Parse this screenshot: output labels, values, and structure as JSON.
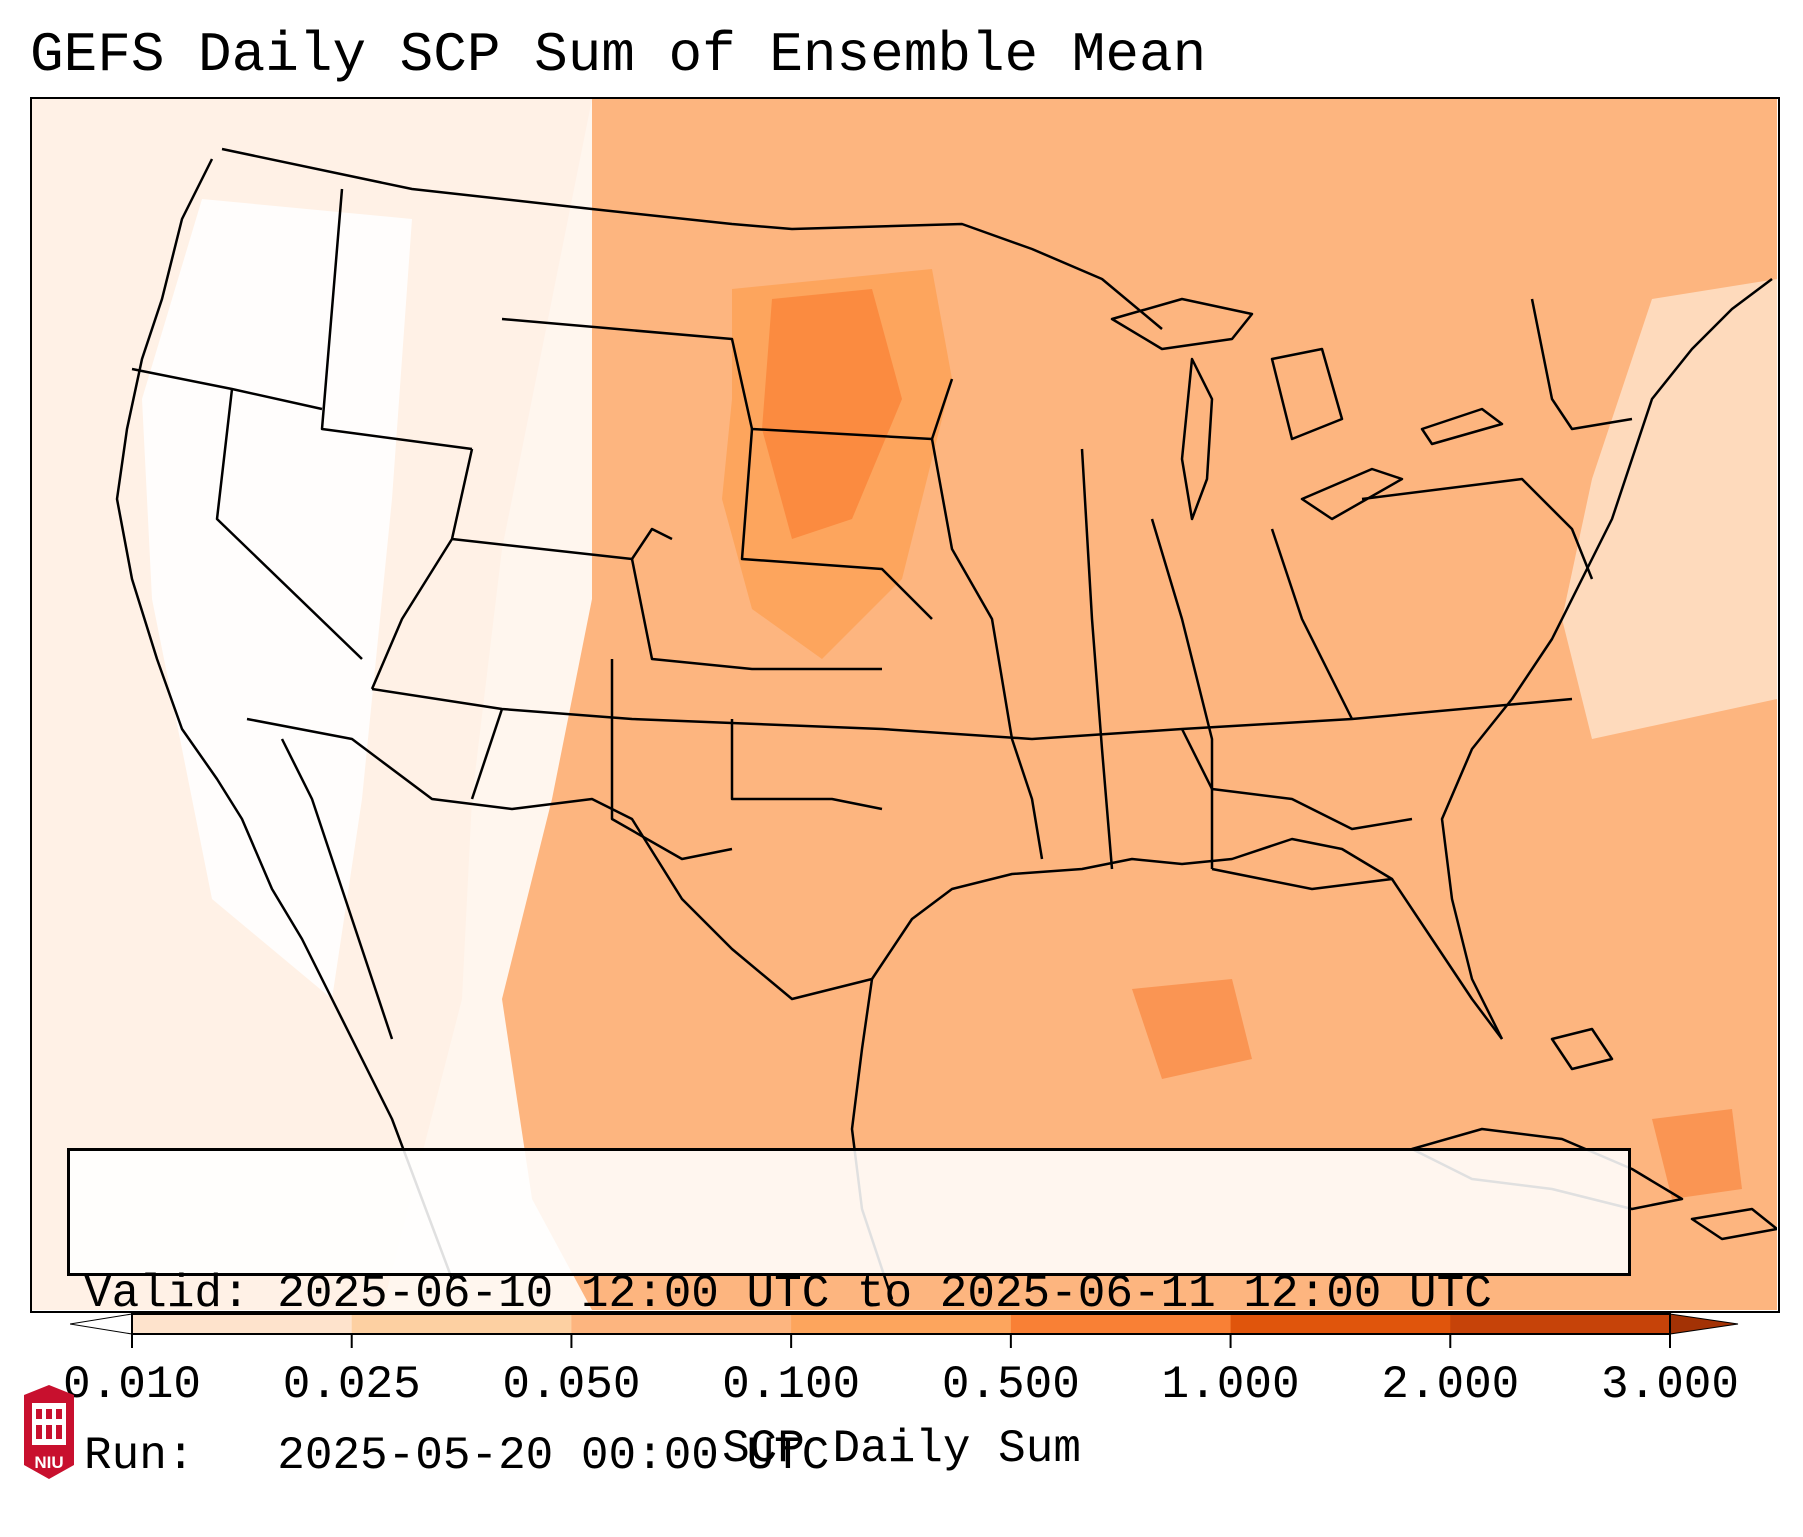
{
  "title": "GEFS Daily SCP Sum of Ensemble Mean",
  "info": {
    "valid_line": "Valid: 2025-06-10 12:00 UTC to 2025-06-11 12:00 UTC",
    "run_line": "Run:   2025-05-20 00:00 UTC"
  },
  "colorbar": {
    "label": "SCP Daily Sum",
    "ticks": [
      "0.010",
      "0.025",
      "0.050",
      "0.100",
      "0.500",
      "1.000",
      "2.000",
      "3.000"
    ],
    "colors": [
      "#fff1e6",
      "#fee3cc",
      "#fdd0a2",
      "#fdb57f",
      "#fda55d",
      "#f98035",
      "#e0550c",
      "#c64309"
    ],
    "extend_left_color": "#ffffff",
    "extend_right_color": "#a33205"
  },
  "logo": {
    "text": "NIU",
    "color": "#c8102e"
  },
  "map": {
    "border_color": "#000000",
    "ocean_level_color": "#fdb57f"
  }
}
